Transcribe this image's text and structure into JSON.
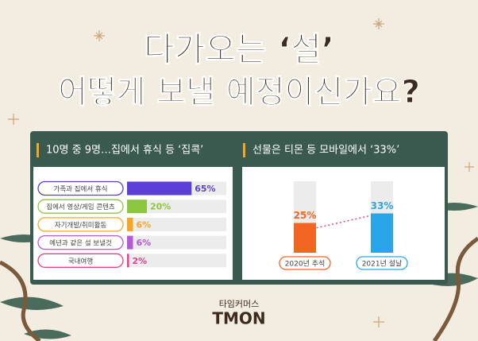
{
  "header": {
    "title_line1": "다가오는 ‘설’",
    "title_line2": "어떻게 보낼 예정이신가요?"
  },
  "footer": {
    "brand_sub": "타임커머스",
    "brand": "TMON"
  },
  "chart_data": [
    {
      "type": "hbar",
      "title": "10명 중 9명…집에서 휴식 등 ‘집콕’",
      "categories": [
        "가족과 집에서 휴식",
        "집에서 영상/게임 콘텐츠",
        "자기개발/취미활동",
        "예년과 같은 설 보낼것",
        "국내여행"
      ],
      "values": [
        65,
        20,
        6,
        6,
        2
      ],
      "value_labels": [
        "65%",
        "20%",
        "6%",
        "6%",
        "2%"
      ],
      "colors": [
        "#5b3fd6",
        "#8cc63f",
        "#f5a623",
        "#b45ad6",
        "#e8418a"
      ],
      "xlim": [
        0,
        100
      ]
    },
    {
      "type": "bar",
      "title": "선물은 티몬 등 모바일에서 ‘33%’",
      "categories": [
        "2020년 추석",
        "2021년 설날"
      ],
      "values": [
        25,
        33
      ],
      "value_labels": [
        "25%",
        "33%"
      ],
      "colors": [
        "#f26522",
        "#2aa6e8"
      ],
      "ylim": [
        0,
        60
      ]
    }
  ]
}
